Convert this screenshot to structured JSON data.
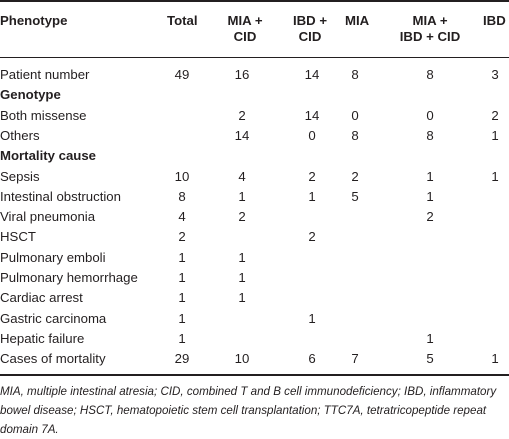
{
  "table": {
    "headers": {
      "phenotype": "Phenotype",
      "total": "Total",
      "mia_cid": [
        "MIA +",
        "CID"
      ],
      "ibd_cid": [
        "IBD +",
        "CID"
      ],
      "mia": "MIA",
      "mia_ibd_cid": [
        "MIA +",
        "IBD + CID"
      ],
      "ibd": "IBD"
    },
    "rows": [
      {
        "type": "data",
        "label": "Patient number",
        "values": [
          "49",
          "16",
          "14",
          "8",
          "8",
          "3"
        ]
      },
      {
        "type": "section",
        "label": "Genotype"
      },
      {
        "type": "data",
        "label": "Both missense",
        "values": [
          "",
          "2",
          "14",
          "0",
          "0",
          "2"
        ]
      },
      {
        "type": "data",
        "label": "Others",
        "values": [
          "",
          "14",
          "0",
          "8",
          "8",
          "1"
        ]
      },
      {
        "type": "section",
        "label": "Mortality cause"
      },
      {
        "type": "data",
        "label": "Sepsis",
        "values": [
          "10",
          "4",
          "2",
          "2",
          "1",
          "1"
        ]
      },
      {
        "type": "data",
        "label": "Intestinal obstruction",
        "values": [
          "8",
          "1",
          "1",
          "5",
          "1",
          ""
        ]
      },
      {
        "type": "data",
        "label": "Viral pneumonia",
        "values": [
          "4",
          "2",
          "",
          "",
          "2",
          ""
        ]
      },
      {
        "type": "data",
        "label": "HSCT",
        "values": [
          "2",
          "",
          "2",
          "",
          "",
          ""
        ]
      },
      {
        "type": "data",
        "label": "Pulmonary emboli",
        "values": [
          "1",
          "1",
          "",
          "",
          "",
          ""
        ]
      },
      {
        "type": "data",
        "label": "Pulmonary hemorrhage",
        "values": [
          "1",
          "1",
          "",
          "",
          "",
          ""
        ]
      },
      {
        "type": "data",
        "label": "Cardiac arrest",
        "values": [
          "1",
          "1",
          "",
          "",
          "",
          ""
        ]
      },
      {
        "type": "data",
        "label": "Gastric carcinoma",
        "values": [
          "1",
          "",
          "1",
          "",
          "",
          ""
        ]
      },
      {
        "type": "data",
        "label": "Hepatic failure",
        "values": [
          "1",
          "",
          "",
          "",
          "1",
          ""
        ]
      },
      {
        "type": "data",
        "label": "Cases of mortality",
        "values": [
          "29",
          "10",
          "6",
          "7",
          "5",
          "1"
        ]
      }
    ]
  },
  "footnote": "MIA, multiple intestinal atresia; CID, combined T and B cell immunodeficiency; IBD, inflammatory bowel disease; HSCT, hematopoietic stem cell transplantation; TTC7A, tetratricopeptide repeat domain 7A."
}
